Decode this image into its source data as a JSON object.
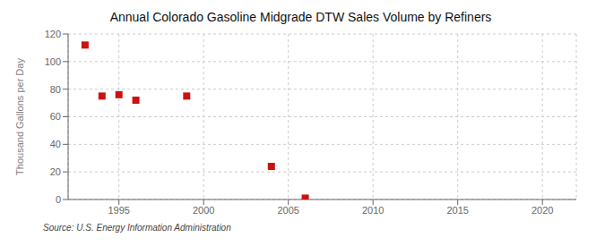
{
  "chart_data": {
    "type": "scatter",
    "title": "Annual Colorado Gasoline Midgrade DTW Sales Volume by Refiners",
    "ylabel": "Thousand Gallons per Day",
    "annotations": [
      "Source: U.S. Energy Information Administration"
    ],
    "x": [
      1993,
      1994,
      1995,
      1996,
      1999,
      2004,
      2006
    ],
    "values": [
      112,
      75,
      76,
      72,
      75,
      24,
      1
    ],
    "color": "#cc1111",
    "marker": "square",
    "xlim": [
      1992,
      2022
    ],
    "ylim": [
      0,
      120
    ],
    "xticks": [
      1995,
      2000,
      2005,
      2010,
      2015,
      2020
    ],
    "yticks": [
      0,
      20,
      40,
      60,
      80,
      100,
      120
    ],
    "grid": true
  }
}
